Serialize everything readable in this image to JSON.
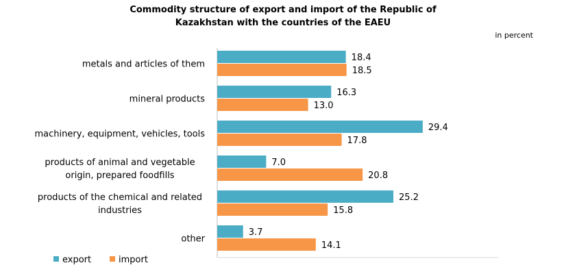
{
  "chart_data": {
    "type": "bar",
    "orientation": "horizontal",
    "title_lines": [
      "Commodity structure of export and import of the Republic of",
      "Kazakhstan with the countries  of the EAEU"
    ],
    "unit_label": "in percent",
    "categories": [
      [
        "metals and articles of them"
      ],
      [
        "mineral products"
      ],
      [
        "machinery, equipment, vehicles, tools"
      ],
      [
        "products of animal and vegetable",
        "origin, prepared foodfills"
      ],
      [
        "products of the chemical and related",
        "industries"
      ],
      [
        "other"
      ]
    ],
    "series": [
      {
        "name": "export",
        "color": "#4bacc6",
        "values": [
          18.4,
          16.3,
          29.4,
          7.0,
          25.2,
          3.7
        ]
      },
      {
        "name": "import",
        "color": "#f79646",
        "values": [
          18.5,
          13.0,
          17.8,
          20.8,
          15.8,
          14.1
        ]
      }
    ],
    "value_labels": [
      [
        "18.4",
        "16.3",
        "29.4",
        "7.0",
        "25.2",
        "3.7"
      ],
      [
        "18.5",
        "13.0",
        "17.8",
        "20.8",
        "15.8",
        "14.1"
      ]
    ],
    "xlim": [
      0,
      40
    ],
    "grid": false,
    "legend": "bottom-left"
  }
}
